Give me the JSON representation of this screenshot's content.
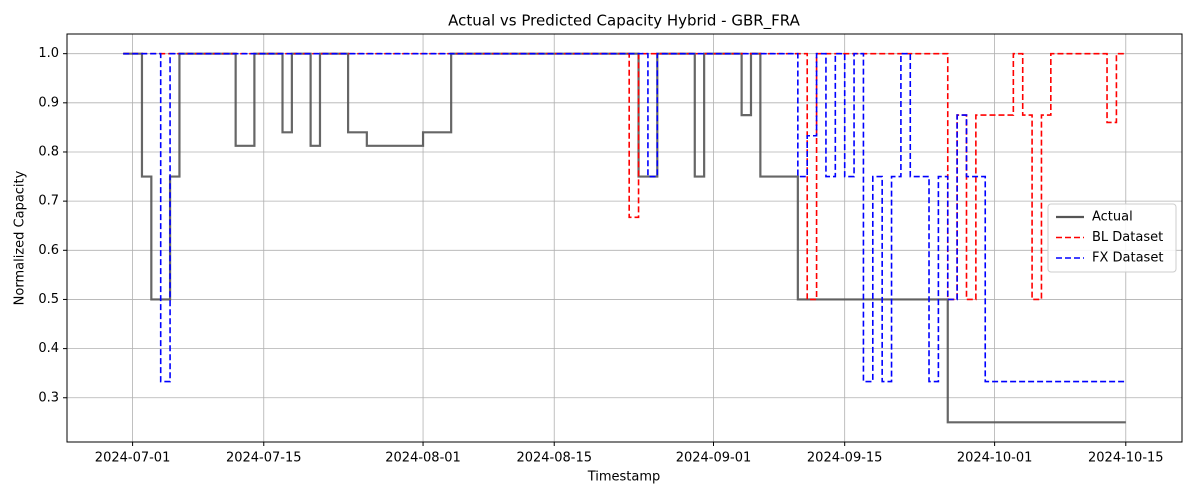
{
  "chart_data": {
    "type": "line",
    "title": "Actual vs Predicted Capacity Hybrid - GBR_FRA",
    "x_label": "Timestamp",
    "y_label": "Normalized Capacity",
    "drawstyle": "steps-post",
    "grid": true,
    "legend": "center right",
    "xlim": [
      "2024-06-24",
      "2024-10-21"
    ],
    "xticks": [
      "2024-07-01",
      "2024-07-15",
      "2024-08-01",
      "2024-08-15",
      "2024-09-01",
      "2024-09-15",
      "2024-10-01",
      "2024-10-15"
    ],
    "ylim": [
      0.21,
      1.04
    ],
    "yticks": [
      {
        "value": 0.3,
        "label": "0.3"
      },
      {
        "value": 0.4,
        "label": "0.4"
      },
      {
        "value": 0.5,
        "label": "0.5"
      },
      {
        "value": 0.6,
        "label": "0.6"
      },
      {
        "value": 0.7,
        "label": "0.7"
      },
      {
        "value": 0.8,
        "label": "0.8"
      },
      {
        "value": 0.9,
        "label": "0.9"
      },
      {
        "value": 1.0,
        "label": "1.0"
      }
    ],
    "series": [
      {
        "name": "Actual",
        "color": "#555555",
        "linestyle": "solid",
        "x": [
          "2024-06-30",
          "2024-07-02",
          "2024-07-03",
          "2024-07-05",
          "2024-07-06",
          "2024-07-12",
          "2024-07-14",
          "2024-07-17",
          "2024-07-18",
          "2024-07-20",
          "2024-07-21",
          "2024-07-24",
          "2024-07-26",
          "2024-07-27",
          "2024-08-01",
          "2024-08-04",
          "2024-08-24",
          "2024-08-26",
          "2024-08-30",
          "2024-08-31",
          "2024-09-04",
          "2024-09-05",
          "2024-09-06",
          "2024-09-10",
          "2024-09-26",
          "2024-10-15"
        ],
        "values": [
          1.0,
          0.75,
          0.5,
          0.75,
          1.0,
          0.8125,
          1.0,
          0.84,
          1.0,
          0.8125,
          1.0,
          0.84,
          0.8125,
          0.8125,
          0.84,
          1.0,
          0.75,
          1.0,
          0.75,
          1.0,
          0.875,
          1.0,
          0.75,
          0.5,
          0.25,
          0.25
        ]
      },
      {
        "name": "BL Dataset",
        "color": "#ff0000",
        "linestyle": "dashed",
        "x": [
          "2024-06-30",
          "2024-08-23",
          "2024-08-24",
          "2024-09-11",
          "2024-09-12",
          "2024-09-26",
          "2024-09-27",
          "2024-09-28",
          "2024-09-29",
          "2024-10-03",
          "2024-10-04",
          "2024-10-05",
          "2024-10-06",
          "2024-10-07",
          "2024-10-13",
          "2024-10-14",
          "2024-10-15"
        ],
        "values": [
          1.0,
          0.667,
          1.0,
          0.5,
          1.0,
          0.5,
          0.875,
          0.5,
          0.875,
          1.0,
          0.875,
          0.5,
          0.875,
          1.0,
          0.86,
          1.0,
          1.0
        ]
      },
      {
        "name": "FX Dataset",
        "color": "#0000ff",
        "linestyle": "dashed",
        "x": [
          "2024-06-30",
          "2024-07-04",
          "2024-07-05",
          "2024-08-25",
          "2024-08-26",
          "2024-09-10",
          "2024-09-11",
          "2024-09-12",
          "2024-09-13",
          "2024-09-14",
          "2024-09-15",
          "2024-09-16",
          "2024-09-17",
          "2024-09-18",
          "2024-09-19",
          "2024-09-20",
          "2024-09-21",
          "2024-09-22",
          "2024-09-24",
          "2024-09-25",
          "2024-09-26",
          "2024-09-27",
          "2024-09-28",
          "2024-09-30",
          "2024-10-15"
        ],
        "values": [
          1.0,
          0.333,
          1.0,
          0.75,
          1.0,
          0.75,
          0.833,
          1.0,
          0.75,
          1.0,
          0.75,
          1.0,
          0.333,
          0.75,
          0.333,
          0.75,
          1.0,
          0.75,
          0.333,
          0.75,
          0.5,
          0.875,
          0.75,
          0.333,
          0.333
        ]
      }
    ]
  }
}
